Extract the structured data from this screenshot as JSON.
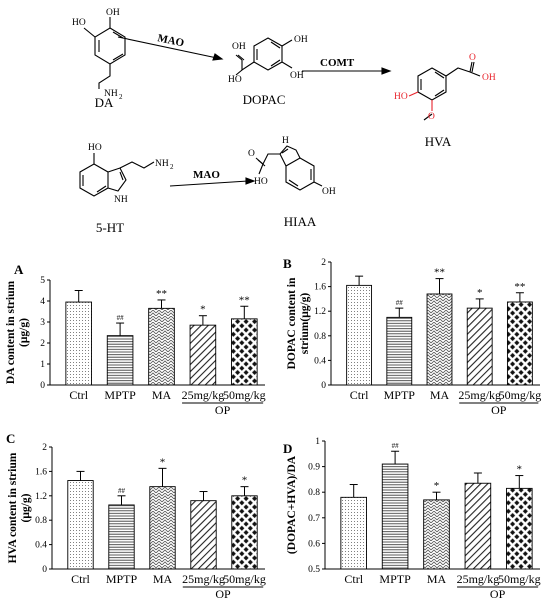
{
  "scheme": {
    "labels": {
      "oh": "OH",
      "ho": "HO",
      "nh2": "NH",
      "nh": "NH",
      "h": "H",
      "o": "O",
      "two": "2"
    },
    "compounds": [
      "DA",
      "DOPAC",
      "HVA",
      "5-HT",
      "HIAA"
    ],
    "enzymes": {
      "mao": "MAO",
      "comt": "COMT"
    }
  },
  "chart_data": [
    {
      "panel_letter": "A",
      "type": "bar",
      "categories": [
        "Ctrl",
        "MPTP",
        "MA",
        "25mg/kg",
        "50mg/kg"
      ],
      "group_label": "OP",
      "values": [
        3.95,
        2.35,
        3.65,
        2.85,
        3.15
      ],
      "errors": [
        0.55,
        0.6,
        0.4,
        0.45,
        0.6
      ],
      "significance": [
        "",
        "##",
        "**",
        "*",
        "**"
      ],
      "ylabel": "DA content in strium (μg/g)",
      "ylim": [
        0,
        5
      ],
      "yticks": [
        "0",
        "1",
        "2",
        "3",
        "4",
        "5"
      ]
    },
    {
      "panel_letter": "B",
      "type": "bar",
      "categories": [
        "Ctrl",
        "MPTP",
        "MA",
        "25mg/kg",
        "50mg/kg"
      ],
      "group_label": "OP",
      "values": [
        1.62,
        1.1,
        1.48,
        1.25,
        1.35
      ],
      "errors": [
        0.15,
        0.15,
        0.25,
        0.15,
        0.15
      ],
      "significance": [
        "",
        "##",
        "**",
        "*",
        "**"
      ],
      "ylabel": "DOPAC content in strium(μg/g)",
      "ylim": [
        0,
        2
      ],
      "yticks": [
        "0",
        "0.4",
        "0.8",
        "1.2",
        "1.6",
        "2"
      ]
    },
    {
      "panel_letter": "C",
      "type": "bar",
      "categories": [
        "Ctrl",
        "MPTP",
        "MA",
        "25mg/kg",
        "50mg/kg"
      ],
      "group_label": "OP",
      "values": [
        1.45,
        1.05,
        1.35,
        1.12,
        1.2
      ],
      "errors": [
        0.15,
        0.15,
        0.3,
        0.15,
        0.15
      ],
      "significance": [
        "",
        "##",
        "*",
        "",
        "*"
      ],
      "ylabel": "HVA content in strium (μg/g)",
      "ylim": [
        0,
        2
      ],
      "yticks": [
        "0",
        "0.4",
        "0.8",
        "1.2",
        "1.6",
        "2"
      ]
    },
    {
      "panel_letter": "D",
      "type": "bar",
      "categories": [
        "Ctrl",
        "MPTP",
        "MA",
        "25mg/kg",
        "50mg/kg"
      ],
      "group_label": "OP",
      "values": [
        0.78,
        0.91,
        0.77,
        0.835,
        0.815
      ],
      "errors": [
        0.05,
        0.05,
        0.03,
        0.04,
        0.05
      ],
      "significance": [
        "",
        "##",
        "*",
        "",
        "*"
      ],
      "ylabel": "(DOPAC+HVA)/DA",
      "ylim": [
        0.5,
        1
      ],
      "yticks": [
        "0.5",
        "0.6",
        "0.7",
        "0.8",
        "0.9",
        "1"
      ]
    }
  ],
  "colors": {
    "axis": "#000000",
    "hva_highlight": "#e8242c",
    "error_bar": "#000000"
  }
}
